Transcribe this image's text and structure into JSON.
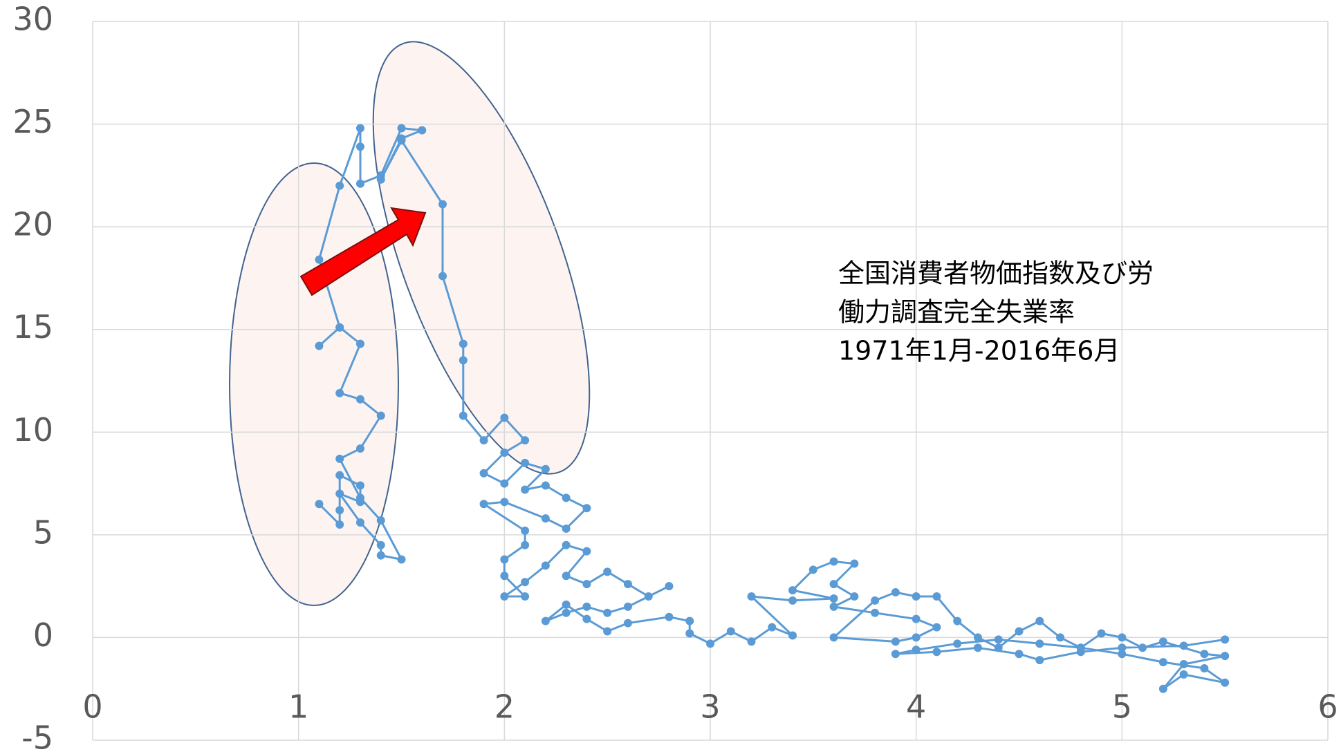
{
  "chart_data": {
    "type": "scatter",
    "annotations": [
      "全国消費者物価指数及び労",
      "働力調査完全失業率",
      "1971年1月-2016年6月"
    ],
    "x": [
      1.1,
      1.2,
      1.2,
      1.2,
      1.3,
      1.3,
      1.2,
      1.3,
      1.4,
      1.4,
      1.5,
      1.4,
      1.3,
      1.2,
      1.3,
      1.4,
      1.3,
      1.2,
      1.3,
      1.2,
      1.1,
      1.2,
      1.1,
      1.2,
      1.3,
      1.3,
      1.3,
      1.4,
      1.5,
      1.6,
      1.5,
      1.4,
      1.5,
      1.7,
      1.7,
      1.8,
      1.8,
      1.8,
      1.9,
      2.0,
      2.1,
      2.0,
      1.9,
      2.0,
      2.1,
      2.2,
      2.1,
      2.2,
      2.3,
      2.4,
      2.3,
      2.2,
      2.0,
      1.9,
      2.1,
      2.1,
      2.0,
      2.0,
      2.1,
      2.0,
      2.1,
      2.2,
      2.3,
      2.4,
      2.3,
      2.4,
      2.5,
      2.6,
      2.7,
      2.8,
      2.6,
      2.5,
      2.4,
      2.3,
      2.2,
      2.3,
      2.4,
      2.5,
      2.6,
      2.8,
      2.9,
      2.9,
      3.0,
      3.1,
      3.2,
      3.3,
      3.4,
      3.2,
      3.4,
      3.6,
      3.4,
      3.5,
      3.6,
      3.7,
      3.6,
      3.7,
      3.6,
      3.8,
      4.0,
      4.1,
      4.0,
      3.9,
      3.6,
      3.8,
      3.9,
      4.0,
      4.1,
      4.2,
      4.3,
      4.4,
      4.5,
      4.6,
      4.7,
      4.8,
      4.9,
      5.0,
      5.1,
      5.2,
      5.4,
      5.5,
      5.3,
      5.2,
      5.3,
      5.5,
      5.4,
      5.2,
      5.0,
      4.8,
      4.6,
      4.4,
      4.2,
      4.0,
      3.9,
      4.1,
      4.3,
      4.5,
      4.6,
      4.8,
      5.0,
      5.3,
      5.5
    ],
    "values": [
      6.5,
      5.5,
      6.2,
      7.9,
      7.4,
      6.6,
      7.0,
      5.6,
      4.5,
      4.0,
      3.8,
      5.7,
      6.8,
      8.7,
      9.2,
      10.8,
      11.6,
      11.9,
      14.3,
      15.1,
      14.2,
      15.1,
      18.4,
      22.0,
      24.8,
      23.9,
      22.1,
      22.5,
      24.8,
      24.7,
      24.3,
      22.3,
      24.2,
      21.1,
      17.6,
      14.3,
      13.5,
      10.8,
      9.6,
      10.7,
      9.6,
      9.0,
      8.0,
      7.5,
      8.5,
      8.2,
      7.2,
      7.4,
      6.8,
      6.3,
      5.3,
      5.8,
      6.6,
      6.5,
      5.2,
      4.5,
      3.8,
      3.0,
      2.0,
      2.0,
      2.7,
      3.5,
      4.5,
      4.2,
      3.0,
      2.6,
      3.2,
      2.6,
      2.0,
      2.5,
      1.5,
      1.2,
      1.5,
      1.2,
      0.8,
      1.6,
      0.9,
      0.3,
      0.7,
      1.0,
      0.8,
      0.2,
      -0.3,
      0.3,
      -0.2,
      0.5,
      0.1,
      2.0,
      1.8,
      1.9,
      2.3,
      3.3,
      3.7,
      3.6,
      2.6,
      2.0,
      1.5,
      1.2,
      0.9,
      0.5,
      0.0,
      -0.2,
      0.0,
      1.8,
      2.2,
      2.0,
      2.0,
      0.8,
      0.0,
      -0.5,
      0.3,
      0.8,
      0.0,
      -0.5,
      0.2,
      0.0,
      -0.5,
      -0.2,
      -0.8,
      -0.9,
      -1.3,
      -2.5,
      -1.8,
      -2.2,
      -1.5,
      -1.2,
      -0.8,
      -0.5,
      -0.3,
      -0.1,
      -0.3,
      -0.6,
      -0.8,
      -0.7,
      -0.5,
      -0.8,
      -1.1,
      -0.7,
      -0.5,
      -0.4,
      -0.1
    ],
    "color": "#5b9bd5",
    "xlim": [
      0,
      6
    ],
    "xticks": [
      0,
      1,
      2,
      3,
      4,
      5,
      6
    ],
    "ylim": [
      -5,
      30
    ],
    "yticks": [
      -5,
      0,
      5,
      10,
      15,
      20,
      25,
      30
    ],
    "grid": true
  }
}
